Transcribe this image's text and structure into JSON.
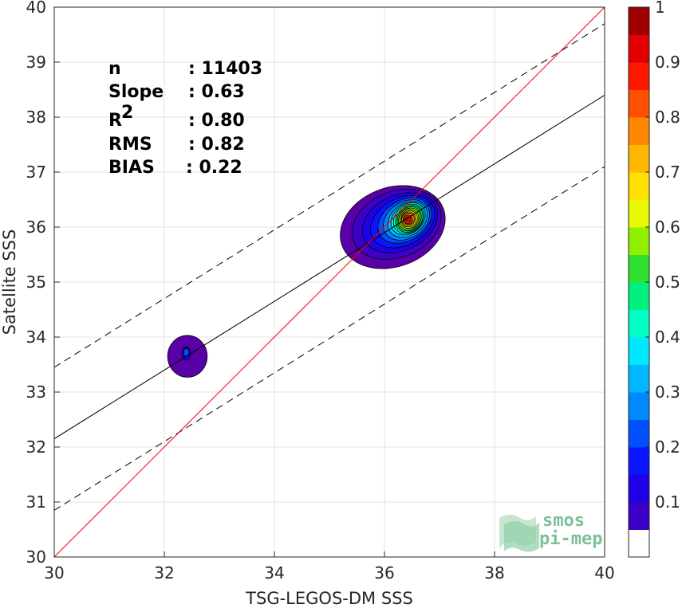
{
  "chart_data": {
    "type": "heatmap",
    "subtype": "density-scatter-contour",
    "xlabel": "TSG-LEGOS-DM SSS",
    "ylabel": "Satellite SSS",
    "xlim": [
      30,
      40
    ],
    "ylim": [
      30,
      40
    ],
    "xticks": [
      "30",
      "32",
      "34",
      "36",
      "38",
      "40"
    ],
    "yticks": [
      "30",
      "31",
      "32",
      "33",
      "34",
      "35",
      "36",
      "37",
      "38",
      "39",
      "40"
    ],
    "grid": true,
    "stats": [
      {
        "label": "n",
        "value": ": 11403"
      },
      {
        "label": "Slope",
        "value": ": 0.63"
      },
      {
        "label": "R",
        "sup": "2",
        "value": ": 0.80"
      },
      {
        "label": "RMS",
        "value": ": 0.82"
      },
      {
        "label": "BIAS",
        "value": ": 0.22"
      }
    ],
    "lines": {
      "one_to_one": {
        "color": "#ff0000",
        "x": [
          30,
          40
        ],
        "y": [
          30,
          40
        ]
      },
      "regression": {
        "color": "#000000",
        "style": "solid",
        "x": [
          30,
          40
        ],
        "y": [
          32.15,
          38.4
        ]
      },
      "upper_bound": {
        "color": "#000000",
        "style": "dashed",
        "x": [
          30,
          40
        ],
        "y": [
          33.45,
          39.7
        ]
      },
      "lower_bound": {
        "color": "#000000",
        "style": "dashed",
        "x": [
          30,
          40
        ],
        "y": [
          30.85,
          37.1
        ]
      }
    },
    "density_clusters": [
      {
        "name": "main",
        "center": [
          36.45,
          36.15
        ],
        "levels": [
          {
            "value": 0.05,
            "rx": 0.98,
            "ry": 0.72,
            "rot": 20,
            "cx": 36.15,
            "cy": 36.0
          },
          {
            "value": 0.1,
            "rx": 0.84,
            "ry": 0.6,
            "rot": 22,
            "cx": 36.22,
            "cy": 36.05
          },
          {
            "value": 0.15,
            "rx": 0.72,
            "ry": 0.5,
            "rot": 25,
            "cx": 36.28,
            "cy": 36.08
          },
          {
            "value": 0.2,
            "rx": 0.62,
            "ry": 0.43,
            "rot": 28,
            "cx": 36.33,
            "cy": 36.1
          },
          {
            "value": 0.25,
            "rx": 0.52,
            "ry": 0.37,
            "rot": 30,
            "cx": 36.37,
            "cy": 36.12
          },
          {
            "value": 0.3,
            "rx": 0.45,
            "ry": 0.33,
            "rot": 32,
            "cx": 36.4,
            "cy": 36.13
          },
          {
            "value": 0.35,
            "rx": 0.39,
            "ry": 0.29,
            "rot": 35,
            "cx": 36.42,
            "cy": 36.14
          },
          {
            "value": 0.4,
            "rx": 0.34,
            "ry": 0.26,
            "rot": 38,
            "cx": 36.43,
            "cy": 36.15
          },
          {
            "value": 0.45,
            "rx": 0.3,
            "ry": 0.24,
            "rot": 40,
            "cx": 36.44,
            "cy": 36.15
          },
          {
            "value": 0.5,
            "rx": 0.27,
            "ry": 0.22,
            "rot": 42,
            "cx": 36.45,
            "cy": 36.15
          },
          {
            "value": 0.55,
            "rx": 0.24,
            "ry": 0.2,
            "rot": 45,
            "cx": 36.45,
            "cy": 36.15
          },
          {
            "value": 0.6,
            "rx": 0.21,
            "ry": 0.18,
            "rot": 45,
            "cx": 36.45,
            "cy": 36.15
          },
          {
            "value": 0.65,
            "rx": 0.18,
            "ry": 0.16,
            "rot": 45,
            "cx": 36.45,
            "cy": 36.15
          },
          {
            "value": 0.7,
            "rx": 0.155,
            "ry": 0.14,
            "rot": 45,
            "cx": 36.45,
            "cy": 36.15
          },
          {
            "value": 0.75,
            "rx": 0.13,
            "ry": 0.12,
            "rot": 45,
            "cx": 36.44,
            "cy": 36.15
          },
          {
            "value": 0.8,
            "rx": 0.105,
            "ry": 0.1,
            "rot": 45,
            "cx": 36.44,
            "cy": 36.15
          },
          {
            "value": 0.85,
            "rx": 0.08,
            "ry": 0.08,
            "rot": 45,
            "cx": 36.43,
            "cy": 36.14
          },
          {
            "value": 0.95,
            "rx": 0.05,
            "ry": 0.055,
            "rot": 45,
            "cx": 36.43,
            "cy": 36.14
          }
        ]
      },
      {
        "name": "secondary",
        "center": [
          32.4,
          33.65
        ],
        "levels": [
          {
            "value": 0.05,
            "rx": 0.36,
            "ry": 0.38,
            "rot": 0,
            "cx": 32.42,
            "cy": 33.65
          },
          {
            "value": 0.15,
            "rx": 0.08,
            "ry": 0.12,
            "rot": 0,
            "cx": 32.4,
            "cy": 33.7
          },
          {
            "value": 0.25,
            "rx": 0.05,
            "ry": 0.07,
            "rot": 0,
            "cx": 32.4,
            "cy": 33.72
          }
        ]
      }
    ],
    "colorbar": {
      "min": 0,
      "max": 1,
      "ticks": [
        "0.1",
        "0.2",
        "0.3",
        "0.4",
        "0.5",
        "0.6",
        "0.7",
        "0.8",
        "0.9",
        "1"
      ],
      "colors": [
        "#ffffff",
        "#5a00a8",
        "#3c00c8",
        "#2000e8",
        "#0a14ff",
        "#0050ff",
        "#0088ff",
        "#00b8ff",
        "#00e8ff",
        "#00ffc4",
        "#00f080",
        "#30e030",
        "#90f000",
        "#e8f800",
        "#ffe000",
        "#ffb800",
        "#ff8800",
        "#ff5000",
        "#ff1800",
        "#e00000",
        "#a00000"
      ]
    }
  },
  "logo": {
    "line1": "smos",
    "line2": "pi-mep"
  }
}
